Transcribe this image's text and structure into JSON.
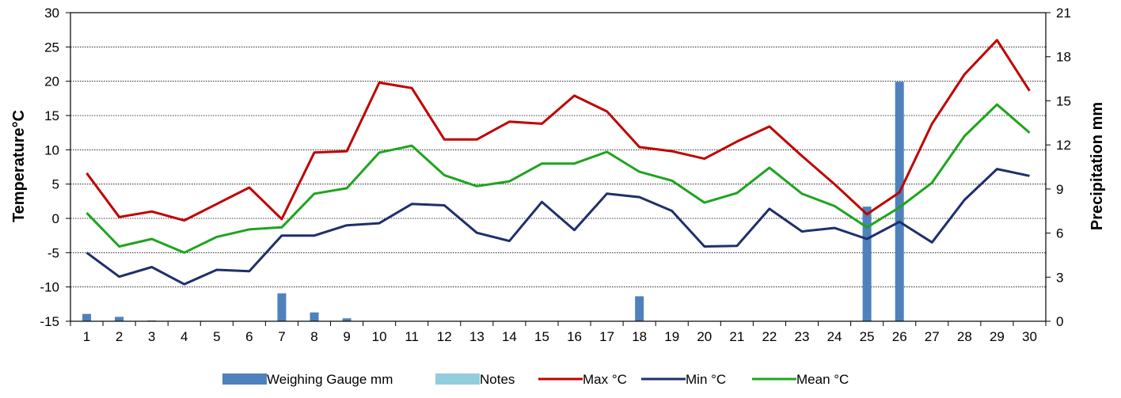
{
  "chart_data": {
    "type": "bar+line",
    "categories": [
      "1",
      "2",
      "3",
      "4",
      "5",
      "6",
      "7",
      "8",
      "9",
      "10",
      "11",
      "12",
      "13",
      "14",
      "15",
      "16",
      "17",
      "18",
      "19",
      "20",
      "21",
      "22",
      "23",
      "24",
      "25",
      "26",
      "27",
      "28",
      "29",
      "30"
    ],
    "y_left": {
      "label": "Temperature°C",
      "range": [
        -15,
        30
      ],
      "ticks": [
        30,
        25,
        20,
        15,
        10,
        5,
        0,
        -5,
        -10,
        -15
      ]
    },
    "y_right": {
      "label": "Precipitation mm",
      "range": [
        0,
        21
      ],
      "ticks": [
        21,
        18,
        15,
        12,
        9,
        6,
        3,
        0
      ]
    },
    "series": [
      {
        "name": "Weighing Gauge mm",
        "kind": "bar",
        "axis": "right",
        "color": "#4F81BD",
        "values": [
          0.5,
          0.3,
          0.05,
          0,
          0,
          0,
          1.9,
          0.6,
          0.2,
          0,
          0,
          0,
          0,
          0,
          0,
          0,
          0,
          1.7,
          0,
          0,
          0,
          0,
          0,
          0,
          7.8,
          16.3,
          0,
          0,
          0,
          0
        ]
      },
      {
        "name": "Notes",
        "kind": "bar",
        "axis": "right",
        "color": "#92CDDC",
        "values": [
          0,
          0,
          0,
          0,
          0,
          0,
          0,
          0,
          0,
          0,
          0,
          0,
          0,
          0,
          0,
          0,
          0,
          0,
          0,
          0,
          0,
          0,
          0,
          0,
          0,
          0,
          0,
          0,
          0,
          0
        ]
      },
      {
        "name": "Max °C",
        "kind": "line",
        "axis": "left",
        "color": "#C00000",
        "values": [
          6.6,
          0.2,
          1.0,
          -0.3,
          2.1,
          4.5,
          -0.1,
          9.6,
          9.8,
          19.8,
          19.0,
          11.5,
          11.5,
          14.1,
          13.8,
          17.9,
          15.6,
          10.4,
          9.8,
          8.7,
          11.2,
          13.4,
          9.1,
          5.0,
          0.6,
          3.8,
          13.8,
          21.0,
          26.0,
          18.6
        ]
      },
      {
        "name": "Min °C",
        "kind": "line",
        "axis": "left",
        "color": "#1F2F6B",
        "values": [
          -5.0,
          -8.5,
          -7.1,
          -9.6,
          -7.5,
          -7.7,
          -2.5,
          -2.5,
          -1.0,
          -0.7,
          2.1,
          1.9,
          -2.1,
          -3.3,
          2.4,
          -1.7,
          3.6,
          3.1,
          1.1,
          -4.1,
          -4.0,
          1.4,
          -1.9,
          -1.4,
          -3.0,
          -0.5,
          -3.5,
          2.7,
          7.2,
          6.2
        ]
      },
      {
        "name": "Mean °C",
        "kind": "line",
        "axis": "left",
        "color": "#1EA41E",
        "values": [
          0.8,
          -4.1,
          -3.0,
          -5.0,
          -2.7,
          -1.6,
          -1.3,
          3.6,
          4.4,
          9.6,
          10.6,
          6.3,
          4.7,
          5.4,
          8.0,
          8.0,
          9.7,
          6.8,
          5.5,
          2.3,
          3.7,
          7.4,
          3.6,
          1.8,
          -1.3,
          1.6,
          5.2,
          12.0,
          16.6,
          12.5
        ]
      }
    ],
    "grid": true,
    "legend": "bottom"
  }
}
